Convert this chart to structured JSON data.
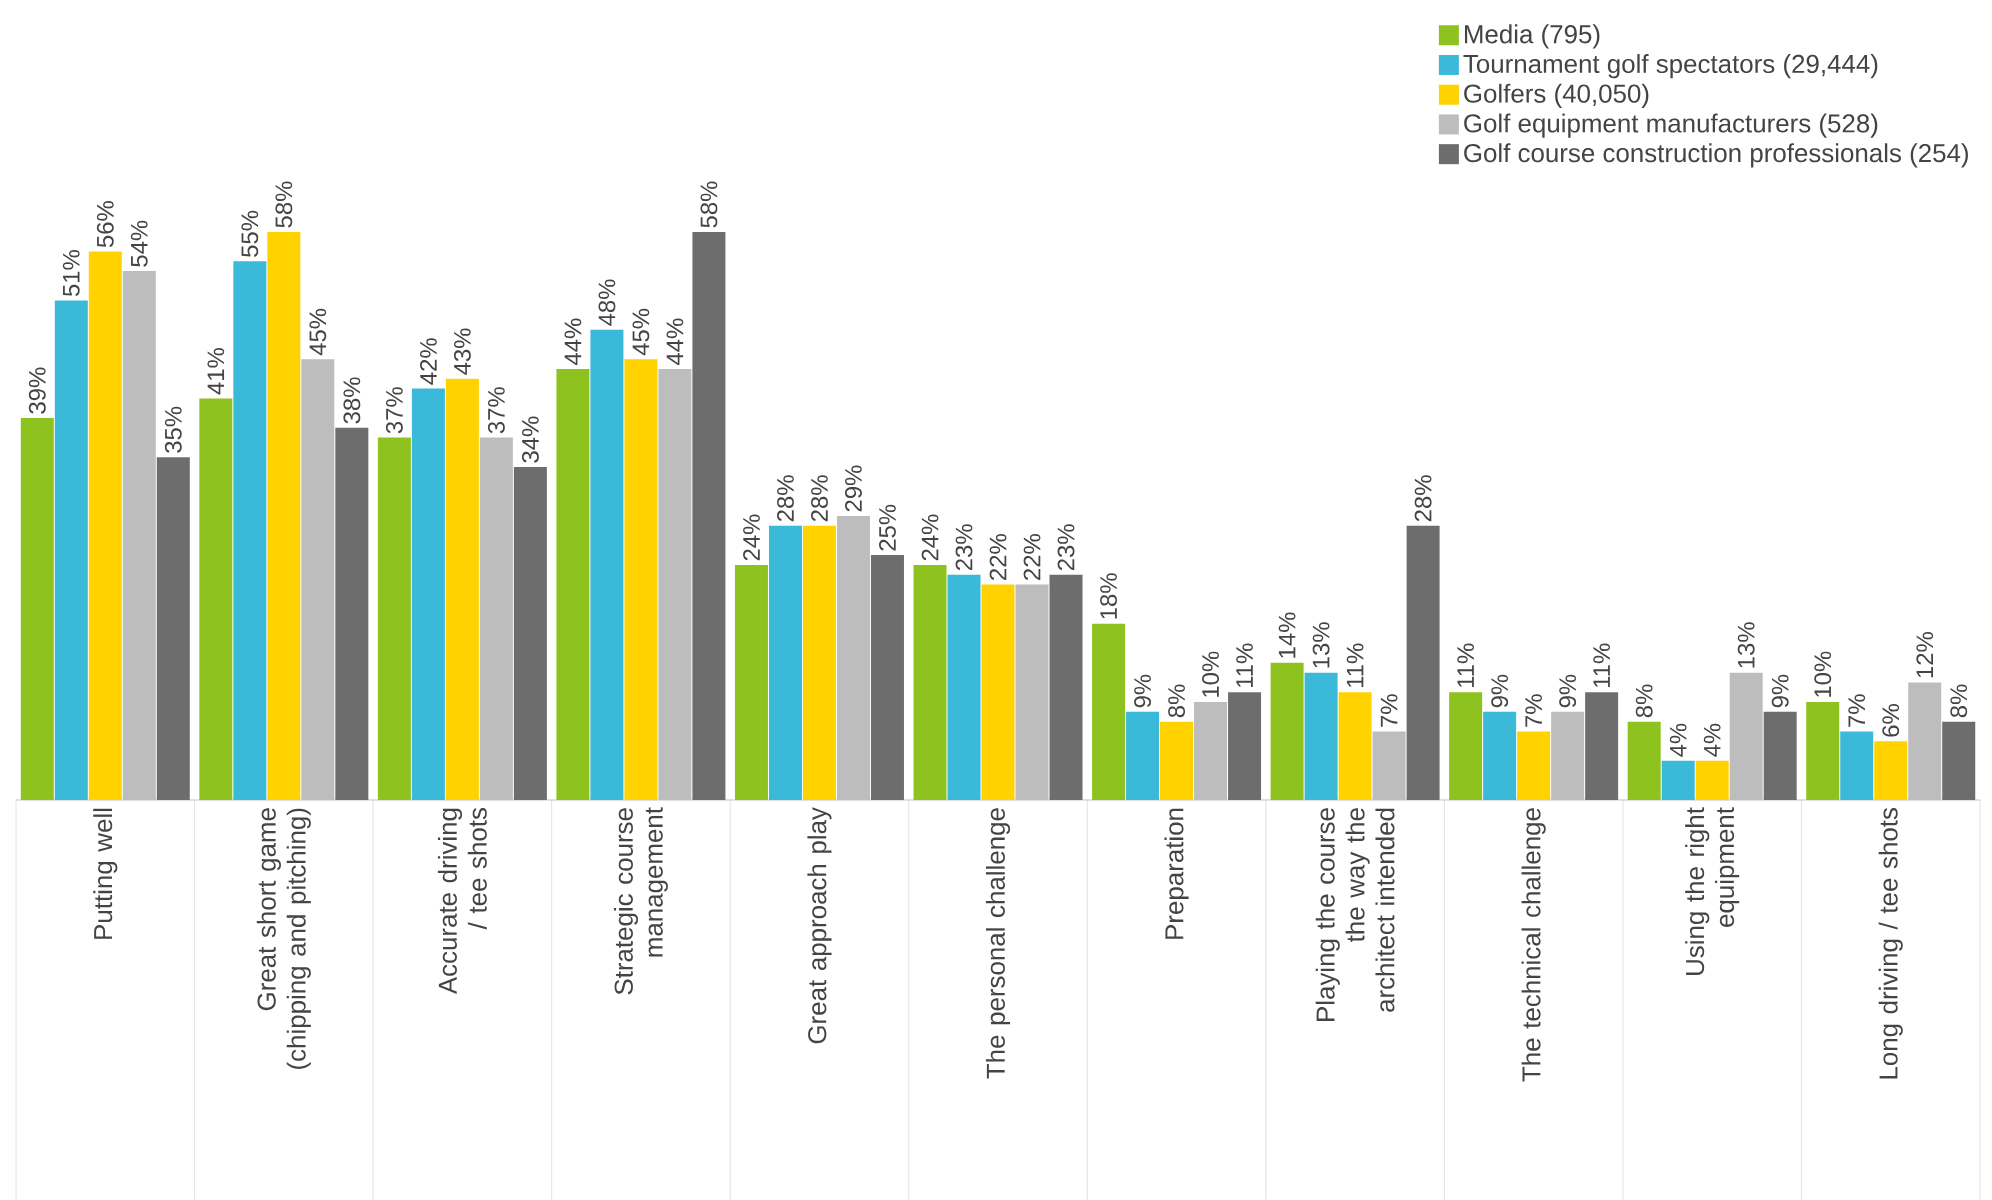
{
  "chart_data": {
    "type": "bar",
    "categories": [
      "Putting well",
      "Great short game (chipping and pitching)",
      "Accurate driving / tee shots",
      "Strategic course management",
      "Great approach play",
      "The personal challenge",
      "Preparation",
      "Playing the course the way the architect intended",
      "The technical challenge",
      "Using the right equipment",
      "Long driving / tee shots"
    ],
    "series": [
      {
        "name": "Media (795)",
        "color": "#8dc21f",
        "values": [
          39,
          41,
          37,
          44,
          24,
          24,
          18,
          14,
          11,
          8,
          10
        ],
        "value_labels": [
          "39%",
          "41%",
          "37%",
          "44%",
          "24%",
          "24%",
          "18%",
          "14%",
          "11%",
          "8%",
          "10%"
        ]
      },
      {
        "name": "Tournament golf spectators (29,444)",
        "color": "#3bb9d9",
        "values": [
          51,
          55,
          42,
          48,
          28,
          23,
          9,
          13,
          9,
          4,
          7
        ],
        "value_labels": [
          "51%",
          "55%",
          "42%",
          "48%",
          "28%",
          "23%",
          "9%",
          "13%",
          "9%",
          "4%",
          "7%"
        ]
      },
      {
        "name": "Golfers (40,050)",
        "color": "#ffd200",
        "values": [
          56,
          58,
          43,
          45,
          28,
          22,
          8,
          11,
          7,
          4,
          6
        ],
        "value_labels": [
          "56%",
          "58%",
          "43%",
          "45%",
          "28%",
          "22%",
          "8%",
          "11%",
          "7%",
          "4%",
          "6%"
        ]
      },
      {
        "name": "Golf equipment manufacturers (528)",
        "color": "#bdbdbd",
        "values": [
          54,
          45,
          37,
          44,
          29,
          22,
          10,
          7,
          9,
          13,
          12
        ],
        "value_labels": [
          "54%",
          "45%",
          "37%",
          "44%",
          "29%",
          "22%",
          "10%",
          "7%",
          "9%",
          "13%",
          "12%"
        ]
      },
      {
        "name": "Golf course construction professionals (254)",
        "color": "#6d6d6d",
        "values": [
          35,
          38,
          34,
          58,
          25,
          23,
          11,
          28,
          11,
          9,
          8
        ],
        "value_labels": [
          "35%",
          "38%",
          "34%",
          "58%",
          "25%",
          "23%",
          "11%",
          "28%",
          "11%",
          "9%",
          "8%"
        ]
      }
    ],
    "legend": "top right"
  }
}
